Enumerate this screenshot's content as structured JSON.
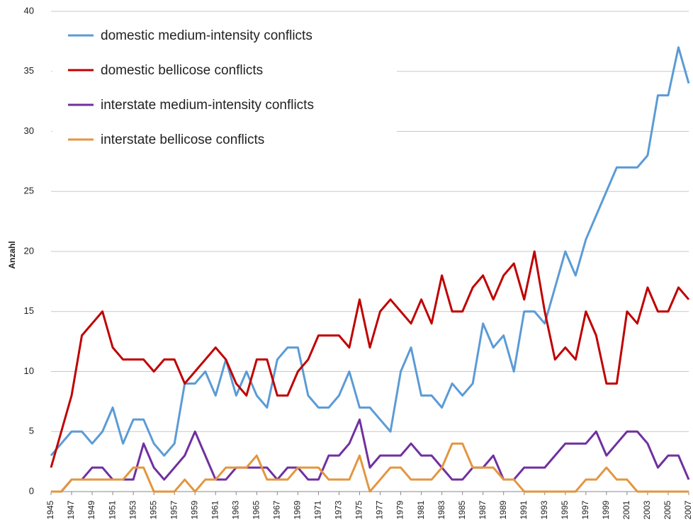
{
  "chart_data": {
    "type": "line",
    "y_label": "Anzahl",
    "x": [
      1945,
      1946,
      1947,
      1948,
      1949,
      1950,
      1951,
      1952,
      1953,
      1954,
      1955,
      1956,
      1957,
      1958,
      1959,
      1960,
      1961,
      1962,
      1963,
      1964,
      1965,
      1966,
      1967,
      1968,
      1969,
      1970,
      1971,
      1972,
      1973,
      1974,
      1975,
      1976,
      1977,
      1978,
      1979,
      1980,
      1981,
      1982,
      1983,
      1984,
      1985,
      1986,
      1987,
      1988,
      1989,
      1990,
      1991,
      1992,
      1993,
      1994,
      1995,
      1996,
      1997,
      1998,
      1999,
      2000,
      2001,
      2002,
      2003,
      2004,
      2005,
      2006,
      2007
    ],
    "xlim": [
      1945,
      2007
    ],
    "xticks": [
      1945,
      1947,
      1949,
      1951,
      1953,
      1955,
      1957,
      1959,
      1961,
      1963,
      1965,
      1967,
      1969,
      1971,
      1973,
      1975,
      1977,
      1979,
      1981,
      1983,
      1985,
      1987,
      1989,
      1991,
      1993,
      1995,
      1997,
      1999,
      2001,
      2003,
      2005,
      2007
    ],
    "ylim": [
      0,
      40
    ],
    "yticks": [
      0,
      5,
      10,
      15,
      20,
      25,
      30,
      35,
      40
    ],
    "grid": true,
    "legend": "upper left",
    "series": [
      {
        "name": "domestic medium-intensity conflicts",
        "color": "#5b9bd5",
        "values": [
          3,
          4,
          5,
          5,
          4,
          5,
          7,
          4,
          6,
          6,
          4,
          3,
          4,
          9,
          9,
          10,
          8,
          11,
          8,
          10,
          8,
          7,
          11,
          12,
          12,
          8,
          7,
          7,
          8,
          10,
          7,
          7,
          6,
          5,
          10,
          12,
          8,
          8,
          7,
          9,
          8,
          9,
          14,
          12,
          13,
          10,
          15,
          15,
          14,
          17,
          20,
          18,
          21,
          23,
          25,
          27,
          27,
          27,
          28,
          33,
          33,
          37,
          34
        ]
      },
      {
        "name": "domestic bellicose conflicts",
        "color": "#c00000",
        "values": [
          2,
          5,
          8,
          13,
          14,
          15,
          12,
          11,
          11,
          11,
          10,
          11,
          11,
          9,
          10,
          11,
          12,
          11,
          9,
          8,
          11,
          11,
          8,
          8,
          10,
          11,
          13,
          13,
          13,
          12,
          16,
          12,
          15,
          16,
          15,
          14,
          16,
          14,
          18,
          15,
          15,
          17,
          18,
          16,
          18,
          19,
          16,
          20,
          15,
          11,
          12,
          11,
          15,
          13,
          9,
          9,
          15,
          14,
          17,
          15,
          15,
          17,
          16
        ]
      },
      {
        "name": "interstate medium-intensity conflicts",
        "color": "#7030a0",
        "values": [
          0,
          0,
          1,
          1,
          2,
          2,
          1,
          1,
          1,
          4,
          2,
          1,
          2,
          3,
          5,
          3,
          1,
          1,
          2,
          2,
          2,
          2,
          1,
          2,
          2,
          1,
          1,
          3,
          3,
          4,
          6,
          2,
          3,
          3,
          3,
          4,
          3,
          3,
          2,
          1,
          1,
          2,
          2,
          3,
          1,
          1,
          2,
          2,
          2,
          3,
          4,
          4,
          4,
          5,
          3,
          4,
          5,
          5,
          4,
          2,
          3,
          3,
          1
        ]
      },
      {
        "name": "interstate bellicose conflicts",
        "color": "#e3963e",
        "values": [
          0,
          0,
          1,
          1,
          1,
          1,
          1,
          1,
          2,
          2,
          0,
          0,
          0,
          1,
          0,
          1,
          1,
          2,
          2,
          2,
          3,
          1,
          1,
          1,
          2,
          2,
          2,
          1,
          1,
          1,
          3,
          0,
          1,
          2,
          2,
          1,
          1,
          1,
          2,
          4,
          4,
          2,
          2,
          2,
          1,
          1,
          0,
          0,
          0,
          0,
          0,
          0,
          1,
          1,
          2,
          1,
          1,
          0,
          0,
          0,
          0,
          0,
          0
        ]
      }
    ]
  }
}
